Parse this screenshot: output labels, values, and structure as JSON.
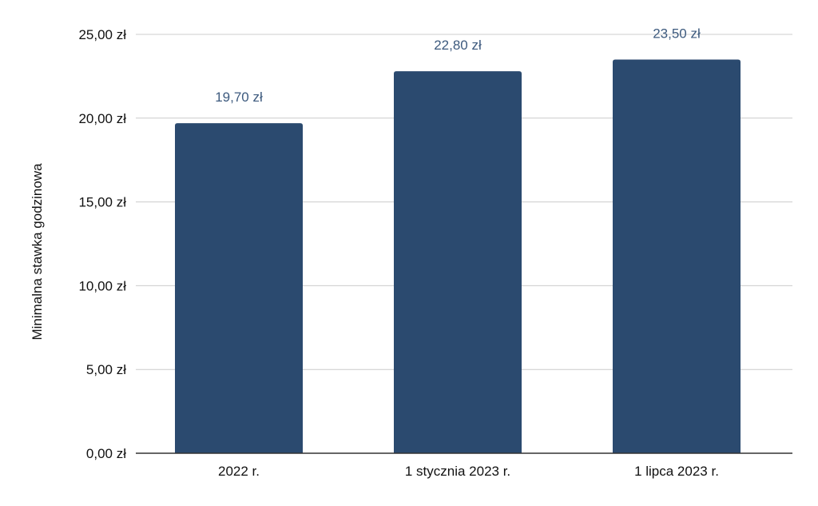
{
  "chart_data": {
    "type": "bar",
    "categories": [
      "2022 r.",
      "1 stycznia 2023 r.",
      "1 lipca 2023 r."
    ],
    "values": [
      19.7,
      22.8,
      23.5
    ],
    "data_labels": [
      "19,70 zł",
      "22,80 zł",
      "23,50 zł"
    ],
    "title": "",
    "xlabel": "",
    "ylabel": "Minimalna stawka godzinowa",
    "ylim": [
      0,
      25
    ],
    "yticks": [
      0,
      5,
      10,
      15,
      20,
      25
    ],
    "ytick_labels": [
      "0,00 zł",
      "5,00 zł",
      "10,00 zł",
      "15,00 zł",
      "20,00 zł",
      "25,00 zł"
    ],
    "grid": true,
    "legend": "none",
    "colors": {
      "bar": "#2b4a6f",
      "grid": "#cccccc",
      "axis": "#333333",
      "data_label": "#3d5a7e"
    }
  }
}
